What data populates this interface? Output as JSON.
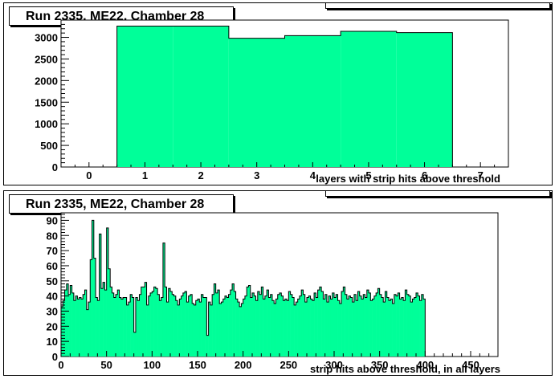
{
  "chart_data": [
    {
      "type": "bar",
      "title": "Run 2335, ME22, Chamber 28",
      "xlabel": "layers with strip hits above threshold",
      "ylabel": "",
      "xlim": [
        -0.5,
        7.5
      ],
      "ylim": [
        0,
        3400
      ],
      "x_ticks": [
        "0",
        "1",
        "2",
        "3",
        "4",
        "5",
        "6",
        "7"
      ],
      "y_ticks": [
        "0",
        "500",
        "1000",
        "1500",
        "2000",
        "2500",
        "3000"
      ],
      "categories": [
        1,
        2,
        3,
        4,
        5,
        6
      ],
      "values": [
        3260,
        3260,
        2980,
        3040,
        3140,
        3110
      ],
      "fill_color": "#00ff99",
      "grid": false
    },
    {
      "type": "bar",
      "title": "Run 2335, ME22, Chamber 28",
      "xlabel": "strip hits above threshold, in all layers",
      "ylabel": "",
      "xlim": [
        0,
        480
      ],
      "ylim": [
        0,
        95
      ],
      "x_ticks": [
        "0",
        "50",
        "100",
        "150",
        "200",
        "250",
        "300",
        "350",
        "400",
        "450"
      ],
      "y_ticks": [
        "0",
        "10",
        "20",
        "30",
        "40",
        "50",
        "60",
        "70",
        "80",
        "90"
      ],
      "bin_width": 2,
      "values": [
        33,
        37,
        44,
        48,
        41,
        47,
        42,
        37,
        40,
        38,
        39,
        38,
        41,
        44,
        31,
        36,
        64,
        90,
        65,
        39,
        37,
        81,
        45,
        49,
        44,
        85,
        58,
        46,
        42,
        39,
        41,
        44,
        39,
        38,
        39,
        39,
        34,
        36,
        41,
        39,
        16,
        39,
        37,
        41,
        46,
        46,
        49,
        34,
        40,
        42,
        43,
        46,
        45,
        41,
        37,
        39,
        75,
        46,
        36,
        45,
        43,
        41,
        40,
        37,
        34,
        38,
        40,
        42,
        43,
        36,
        40,
        41,
        35,
        34,
        37,
        38,
        36,
        41,
        39,
        39,
        14,
        36,
        34,
        41,
        48,
        42,
        44,
        35,
        36,
        38,
        40,
        39,
        41,
        44,
        48,
        43,
        38,
        36,
        33,
        35,
        38,
        40,
        46,
        47,
        39,
        42,
        40,
        37,
        43,
        41,
        46,
        38,
        40,
        44,
        39,
        41,
        37,
        35,
        38,
        41,
        42,
        40,
        37,
        38,
        37,
        43,
        41,
        39,
        34,
        36,
        38,
        40,
        44,
        41,
        36,
        39,
        40,
        38,
        37,
        42,
        39,
        44,
        46,
        43,
        38,
        41,
        36,
        40,
        38,
        42,
        39,
        41,
        37,
        35,
        43,
        46,
        41,
        38,
        40,
        39,
        36,
        41,
        37,
        43,
        40,
        38,
        41,
        39,
        44,
        42,
        37,
        38,
        40,
        42,
        45,
        41,
        39,
        36,
        43,
        39,
        37,
        38,
        35,
        41,
        40,
        42,
        38,
        39,
        37,
        44,
        41,
        40,
        36,
        38,
        39,
        42,
        40,
        37,
        41,
        38
      ]
    }
  ]
}
